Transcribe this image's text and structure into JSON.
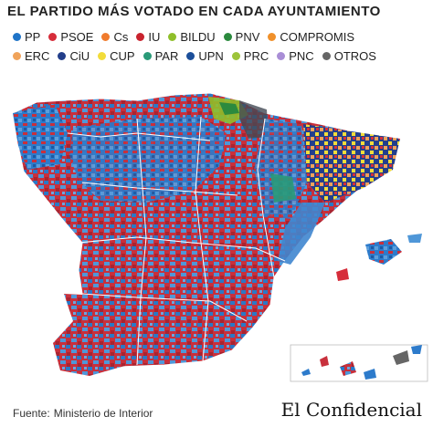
{
  "title": "EL PARTIDO MÁS VOTADO EN CADA AYUNTAMIENTO",
  "legend": [
    [
      {
        "label": "PP",
        "color": "#1f74c8"
      },
      {
        "label": "PSOE",
        "color": "#d62d3a"
      },
      {
        "label": "Cs",
        "color": "#f07b2d"
      },
      {
        "label": "IU",
        "color": "#c9232e"
      },
      {
        "label": "BILDU",
        "color": "#8fbf2a"
      },
      {
        "label": "PNV",
        "color": "#2b8a3e"
      },
      {
        "label": "COMPROMIS",
        "color": "#f0902a"
      }
    ],
    [
      {
        "label": "ERC",
        "color": "#f0a35a"
      },
      {
        "label": "CiU",
        "color": "#223e8a"
      },
      {
        "label": "CUP",
        "color": "#f2dc3a"
      },
      {
        "label": "PAR",
        "color": "#2a9a78"
      },
      {
        "label": "UPN",
        "color": "#1c4f9a"
      },
      {
        "label": "PRC",
        "color": "#9dc43a"
      },
      {
        "label": "PNC",
        "color": "#a98ed6"
      },
      {
        "label": "OTROS",
        "color": "#666666"
      }
    ]
  ],
  "source": {
    "prefix": "Fuente:",
    "text": "Ministerio de Interior"
  },
  "logo": "El Confidencial"
}
